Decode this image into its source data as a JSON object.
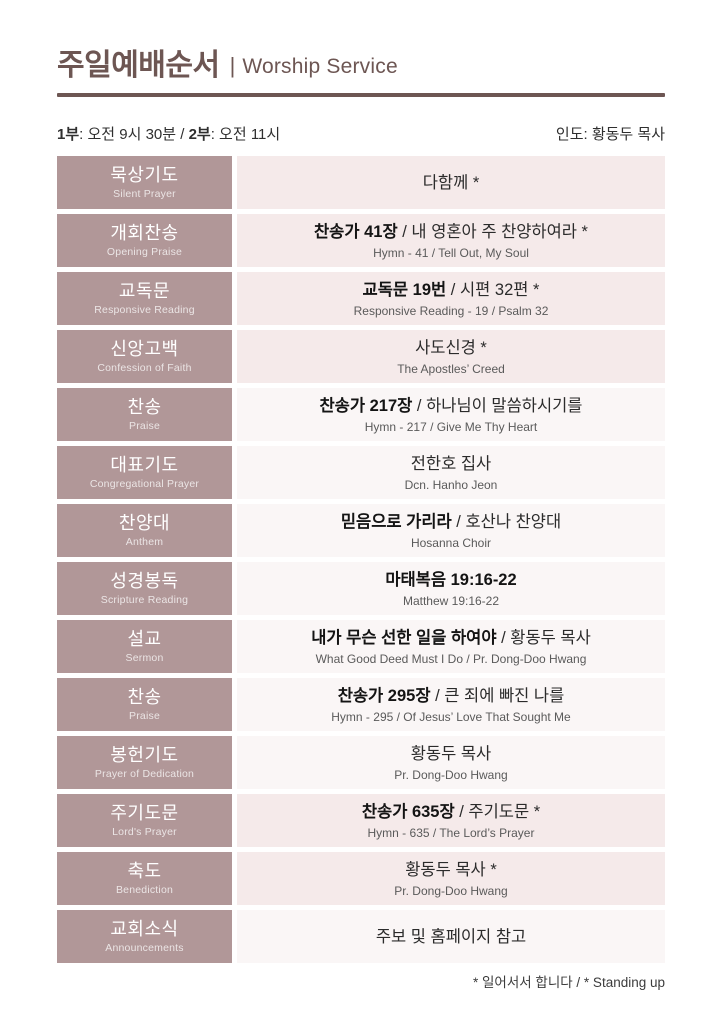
{
  "header": {
    "title_ko": "주일예배순서",
    "title_sep": "|",
    "title_en": "Worship Service"
  },
  "info": {
    "part1_label": "1부",
    "part1_rest": ": 오전 9시 30분 / ",
    "part2_label": "2부",
    "part2_rest": ": 오전 11시",
    "leader": "인도: 황동두 목사"
  },
  "rows": [
    {
      "label_ko": "묵상기도",
      "label_en": "Silent Prayer",
      "bold": "",
      "rest": "다함께 *",
      "sub": "",
      "standing": true
    },
    {
      "label_ko": "개회찬송",
      "label_en": "Opening Praise",
      "bold": "찬송가 41장",
      "rest": " / 내 영혼아 주 찬양하여라 *",
      "sub": "Hymn - 41 / Tell Out, My Soul",
      "standing": true
    },
    {
      "label_ko": "교독문",
      "label_en": "Responsive Reading",
      "bold": "교독문 19번",
      "rest": " / 시편 32편 *",
      "sub": "Responsive Reading - 19 / Psalm 32",
      "standing": true
    },
    {
      "label_ko": "신앙고백",
      "label_en": "Confession of Faith",
      "bold": "",
      "rest": "사도신경 *",
      "sub": "The Apostles’ Creed",
      "standing": true
    },
    {
      "label_ko": "찬송",
      "label_en": "Praise",
      "bold": "찬송가 217장",
      "rest": " / 하나님이 말씀하시기를",
      "sub": "Hymn - 217 / Give Me Thy Heart",
      "standing": false
    },
    {
      "label_ko": "대표기도",
      "label_en": "Congregational Prayer",
      "bold": "",
      "rest": "전한호 집사",
      "sub": "Dcn. Hanho Jeon",
      "standing": false
    },
    {
      "label_ko": "찬양대",
      "label_en": "Anthem",
      "bold": "믿음으로 가리라",
      "rest": " / 호산나 찬양대",
      "sub": "Hosanna Choir",
      "standing": false
    },
    {
      "label_ko": "성경봉독",
      "label_en": "Scripture Reading",
      "bold": "마태복음 19:16-22",
      "rest": "",
      "sub": "Matthew 19:16-22",
      "standing": false
    },
    {
      "label_ko": "설교",
      "label_en": "Sermon",
      "bold": "내가 무슨 선한 일을 하여야",
      "rest": " / 황동두 목사",
      "sub": "What Good Deed Must I Do / Pr. Dong-Doo Hwang",
      "standing": false
    },
    {
      "label_ko": "찬송",
      "label_en": "Praise",
      "bold": "찬송가 295장",
      "rest": " / 큰 죄에 빠진 나를",
      "sub": "Hymn - 295 / Of Jesus’ Love That Sought Me",
      "standing": false
    },
    {
      "label_ko": "봉헌기도",
      "label_en": "Prayer of Dedication",
      "bold": "",
      "rest": "황동두 목사",
      "sub": "Pr. Dong-Doo Hwang",
      "standing": false
    },
    {
      "label_ko": "주기도문",
      "label_en": "Lord's Prayer",
      "bold": "찬송가 635장",
      "rest": " / 주기도문 *",
      "sub": "Hymn - 635 / The Lord’s Prayer",
      "standing": true
    },
    {
      "label_ko": "축도",
      "label_en": "Benediction",
      "bold": "",
      "rest": "황동두 목사 *",
      "sub": "Pr. Dong-Doo Hwang",
      "standing": true
    },
    {
      "label_ko": "교회소식",
      "label_en": "Announcements",
      "bold": "",
      "rest": "주보 및 홈페이지 참고",
      "sub": "",
      "standing": false
    }
  ],
  "footer": {
    "note": "* 일어서서 합니다 / * Standing up"
  },
  "colors": {
    "accent_dark": "#6d5653",
    "label_bg": "#b19798",
    "row_standing_bg": "#f5eaea",
    "row_regular_bg": "#faf6f6",
    "sub_text": "#5a5a5a"
  }
}
